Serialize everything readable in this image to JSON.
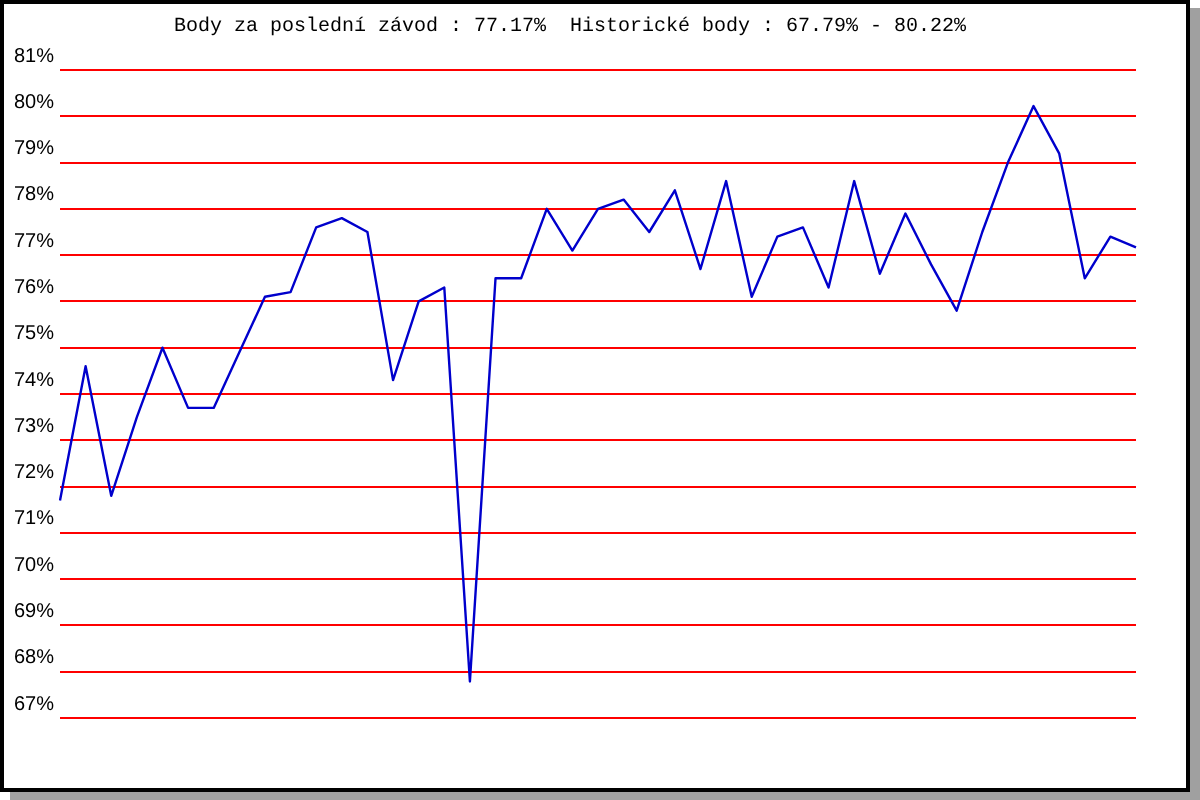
{
  "chart_data": {
    "type": "line",
    "title": "Body za poslední závod : 77.17%  Historické body : 67.79% - 80.22%",
    "categories": [
      null,
      null,
      null,
      null,
      null,
      null,
      null,
      null,
      null,
      null,
      null,
      null,
      null,
      null,
      null,
      null,
      null,
      null,
      null,
      null,
      null,
      null,
      null,
      null,
      null,
      null,
      null,
      null,
      null,
      null,
      null,
      null,
      null,
      null,
      null,
      null,
      null,
      null,
      null,
      null,
      null,
      null,
      null
    ],
    "values": [
      71.7,
      74.6,
      71.8,
      73.5,
      75.0,
      73.7,
      73.7,
      74.9,
      76.1,
      76.2,
      77.6,
      77.8,
      77.5,
      74.3,
      76.0,
      76.3,
      67.79,
      76.5,
      76.5,
      78.0,
      77.1,
      78.0,
      78.2,
      77.5,
      78.4,
      76.7,
      78.6,
      76.1,
      77.4,
      77.6,
      76.3,
      78.6,
      76.6,
      77.9,
      76.8,
      75.8,
      77.5,
      79.0,
      80.22,
      79.2,
      76.5,
      77.4,
      77.17
    ],
    "color": "#0000cc",
    "ylim": [
      67,
      81
    ],
    "yticks": [
      {
        "value": 67,
        "label": "67%"
      },
      {
        "value": 68,
        "label": "68%"
      },
      {
        "value": 69,
        "label": "69%"
      },
      {
        "value": 70,
        "label": "70%"
      },
      {
        "value": 71,
        "label": "71%"
      },
      {
        "value": 72,
        "label": "72%"
      },
      {
        "value": 73,
        "label": "73%"
      },
      {
        "value": 74,
        "label": "74%"
      },
      {
        "value": 75,
        "label": "75%"
      },
      {
        "value": 76,
        "label": "76%"
      },
      {
        "value": 77,
        "label": "77%"
      },
      {
        "value": 78,
        "label": "78%"
      },
      {
        "value": 79,
        "label": "79%"
      },
      {
        "value": 80,
        "label": "80%"
      },
      {
        "value": 81,
        "label": "81%"
      }
    ],
    "grid": "y",
    "marker": "none",
    "tick_labels": "y"
  }
}
